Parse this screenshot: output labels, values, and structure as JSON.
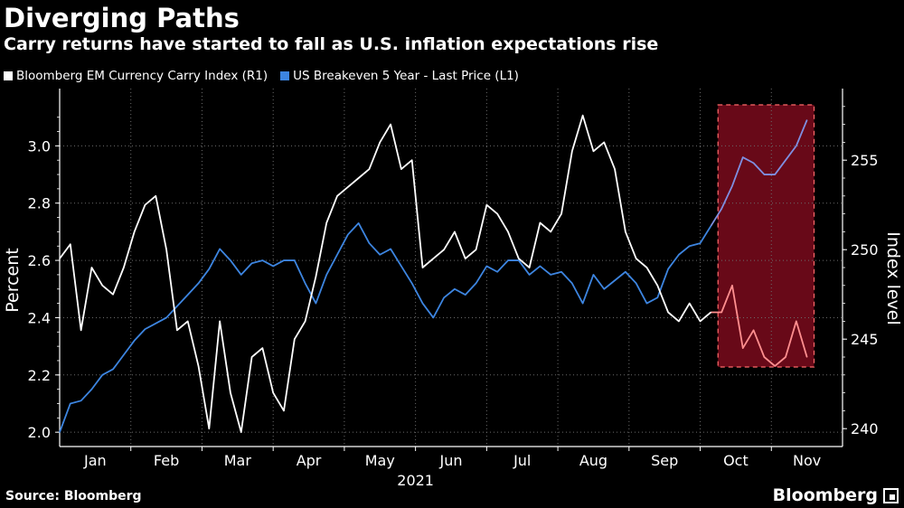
{
  "header": {
    "title": "Diverging Paths",
    "subtitle": "Carry returns have started to fall as U.S. inflation expectations rise"
  },
  "legend": [
    {
      "label": "Bloomberg EM Currency Carry Index (R1)",
      "color": "#ffffff"
    },
    {
      "label": "US Breakeven 5 Year - Last Price (L1)",
      "color": "#3d85e0"
    }
  ],
  "footer": {
    "source": "Source: Bloomberg",
    "brand": "Bloomberg"
  },
  "chart_data": {
    "type": "line",
    "x_labels": [
      "Jan",
      "Feb",
      "Mar",
      "Apr",
      "May",
      "Jun",
      "Jul",
      "Aug",
      "Sep",
      "Oct",
      "Nov"
    ],
    "x_year_label": "2021",
    "left_axis": {
      "label": "Percent",
      "ylim": [
        1.95,
        3.2
      ],
      "ticks": [
        "2.0",
        "2.2",
        "2.4",
        "2.6",
        "2.8",
        "3.0"
      ]
    },
    "right_axis": {
      "label": "Index level",
      "ylim": [
        239,
        259
      ],
      "ticks": [
        "240",
        "245",
        "250",
        "255"
      ]
    },
    "grid": true,
    "legend_position": "top-left",
    "highlight_region": {
      "from_month": 9.25,
      "to_month": 10.6,
      "color": "#7a0a1c"
    },
    "series": [
      {
        "name": "US Breakeven 5 Year - Last Price (L1)",
        "axis": "left",
        "color": "#3d85e0",
        "highlight_color": "#7f8fe0",
        "x": [
          0,
          0.15,
          0.3,
          0.45,
          0.6,
          0.75,
          0.9,
          1.05,
          1.2,
          1.35,
          1.5,
          1.65,
          1.8,
          1.95,
          2.1,
          2.25,
          2.4,
          2.55,
          2.7,
          2.85,
          3.0,
          3.15,
          3.3,
          3.45,
          3.6,
          3.75,
          3.9,
          4.05,
          4.2,
          4.35,
          4.5,
          4.65,
          4.8,
          4.95,
          5.1,
          5.25,
          5.4,
          5.55,
          5.7,
          5.85,
          6.0,
          6.15,
          6.3,
          6.45,
          6.6,
          6.75,
          6.9,
          7.05,
          7.2,
          7.35,
          7.5,
          7.65,
          7.8,
          7.95,
          8.1,
          8.25,
          8.4,
          8.55,
          8.7,
          8.85,
          9.0,
          9.15,
          9.3,
          9.45,
          9.6,
          9.75,
          9.9,
          10.05,
          10.2,
          10.35,
          10.5
        ],
        "values": [
          2.0,
          2.1,
          2.11,
          2.15,
          2.2,
          2.22,
          2.27,
          2.32,
          2.36,
          2.38,
          2.4,
          2.44,
          2.48,
          2.52,
          2.57,
          2.64,
          2.6,
          2.55,
          2.59,
          2.6,
          2.58,
          2.6,
          2.6,
          2.52,
          2.45,
          2.55,
          2.62,
          2.69,
          2.73,
          2.66,
          2.62,
          2.64,
          2.58,
          2.52,
          2.45,
          2.4,
          2.47,
          2.5,
          2.48,
          2.52,
          2.58,
          2.56,
          2.6,
          2.6,
          2.55,
          2.58,
          2.55,
          2.56,
          2.52,
          2.45,
          2.55,
          2.5,
          2.53,
          2.56,
          2.52,
          2.45,
          2.47,
          2.57,
          2.62,
          2.65,
          2.66,
          2.72,
          2.78,
          2.86,
          2.96,
          2.94,
          2.9,
          2.9,
          2.95,
          3.0,
          3.09
        ]
      },
      {
        "name": "Bloomberg EM Currency Carry Index (R1)",
        "axis": "right",
        "color": "#ffffff",
        "highlight_color": "#ff8f8f",
        "x": [
          0,
          0.15,
          0.3,
          0.45,
          0.6,
          0.75,
          0.9,
          1.05,
          1.2,
          1.35,
          1.5,
          1.65,
          1.8,
          1.95,
          2.1,
          2.25,
          2.4,
          2.55,
          2.7,
          2.85,
          3.0,
          3.15,
          3.3,
          3.45,
          3.6,
          3.75,
          3.9,
          4.05,
          4.2,
          4.35,
          4.5,
          4.65,
          4.8,
          4.95,
          5.1,
          5.25,
          5.4,
          5.55,
          5.7,
          5.85,
          6.0,
          6.15,
          6.3,
          6.45,
          6.6,
          6.75,
          6.9,
          7.05,
          7.2,
          7.35,
          7.5,
          7.65,
          7.8,
          7.95,
          8.1,
          8.25,
          8.4,
          8.55,
          8.7,
          8.85,
          9.0,
          9.15,
          9.3,
          9.45,
          9.6,
          9.75,
          9.9,
          10.05,
          10.2,
          10.35,
          10.5
        ],
        "values": [
          249.5,
          250.3,
          245.5,
          249.0,
          248.0,
          247.5,
          249.0,
          251.0,
          252.5,
          253.0,
          250.0,
          245.5,
          246.0,
          243.5,
          240.0,
          246.0,
          242.0,
          239.8,
          244.0,
          244.5,
          242.0,
          241.0,
          245.0,
          246.0,
          248.5,
          251.5,
          253.0,
          253.5,
          254.0,
          254.5,
          256.0,
          257.0,
          254.5,
          255.0,
          249.0,
          249.5,
          250.0,
          251.0,
          249.5,
          250.0,
          252.5,
          252.0,
          251.0,
          249.5,
          249.0,
          251.5,
          251.0,
          252.0,
          255.5,
          257.5,
          255.5,
          256.0,
          254.5,
          251.0,
          249.5,
          249.0,
          248.0,
          246.5,
          246.0,
          247.0,
          246.0,
          246.5,
          246.5,
          248.0,
          244.5,
          245.5,
          244.0,
          243.5,
          244.0,
          246.0,
          244.0
        ]
      }
    ]
  }
}
